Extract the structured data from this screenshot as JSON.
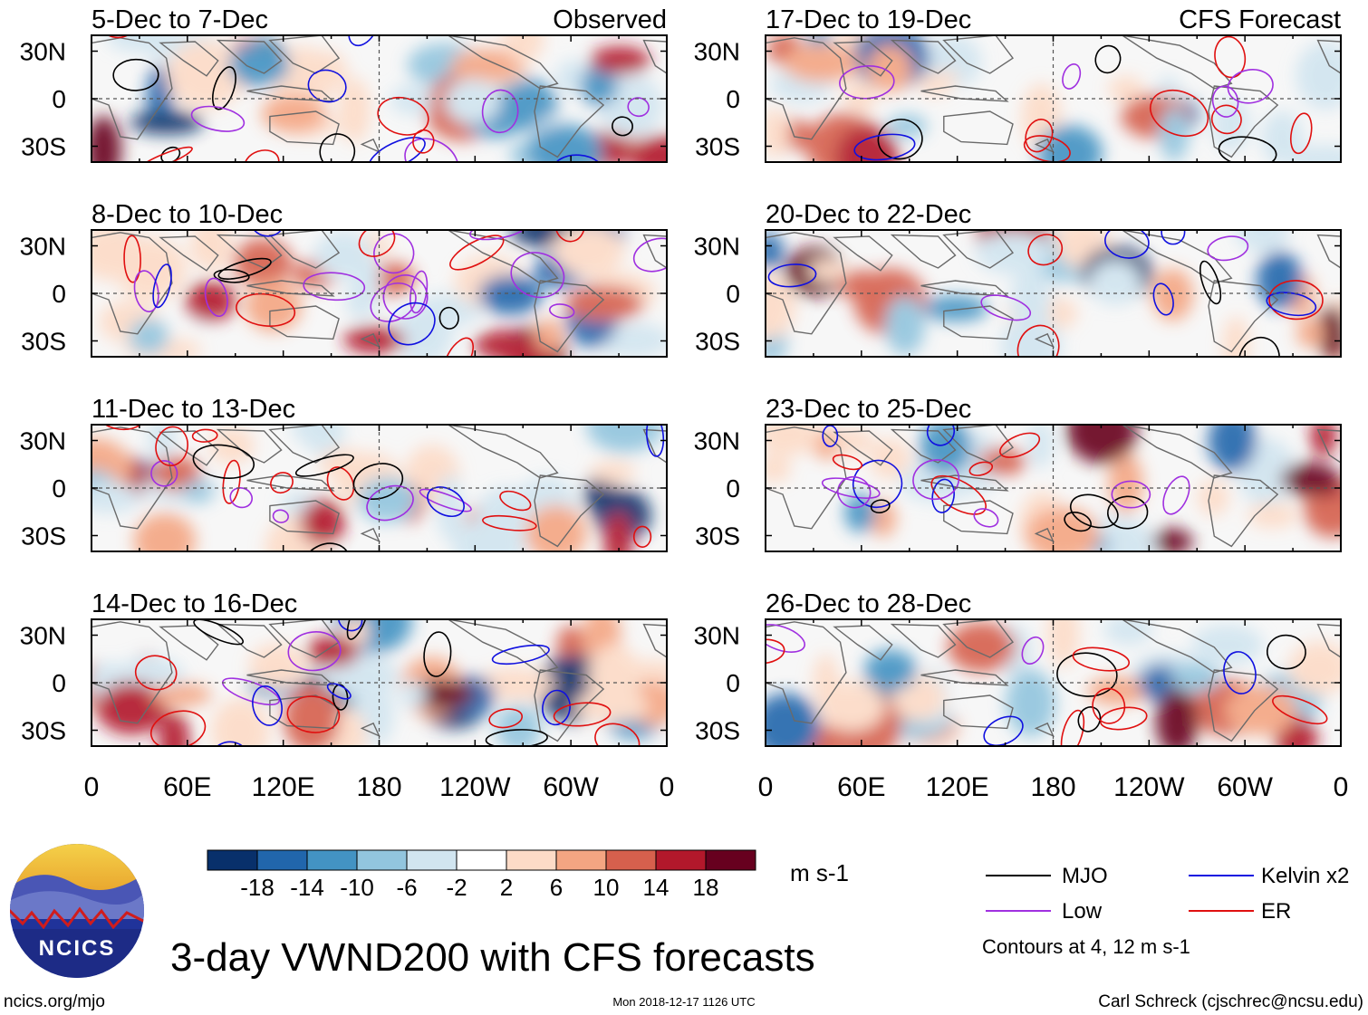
{
  "chart_data": {
    "type": "heatmap",
    "title": "3-day VWND200 with CFS forecasts",
    "variable": "VWND200",
    "units": "m s-1",
    "column_headers": {
      "left": "Observed",
      "right": "CFS Forecast"
    },
    "x_tick_labels": [
      "0",
      "60E",
      "120E",
      "180",
      "120W",
      "60W",
      "0"
    ],
    "y_tick_labels": [
      "30N",
      "0",
      "30S"
    ],
    "xlim": [
      0,
      360
    ],
    "ylim": [
      -40,
      40
    ],
    "panels": [
      {
        "column": "Observed",
        "period": "5-Dec to 7-Dec"
      },
      {
        "column": "Observed",
        "period": "8-Dec to 10-Dec"
      },
      {
        "column": "Observed",
        "period": "11-Dec to 13-Dec"
      },
      {
        "column": "Observed",
        "period": "14-Dec to 16-Dec"
      },
      {
        "column": "CFS Forecast",
        "period": "17-Dec to 19-Dec"
      },
      {
        "column": "CFS Forecast",
        "period": "20-Dec to 22-Dec"
      },
      {
        "column": "CFS Forecast",
        "period": "23-Dec to 25-Dec"
      },
      {
        "column": "CFS Forecast",
        "period": "26-Dec to 28-Dec"
      }
    ],
    "colorbar": {
      "tick_labels": [
        "-18",
        "-14",
        "-10",
        "-6",
        "-2",
        "2",
        "6",
        "10",
        "14",
        "18"
      ],
      "colors": [
        "#08306b",
        "#2166ac",
        "#4393c3",
        "#92c5de",
        "#d1e5f0",
        "#ffffff",
        "#fddbc7",
        "#f4a582",
        "#d6604d",
        "#b2182b",
        "#67001f"
      ]
    },
    "legend": [
      {
        "label": "MJO",
        "color": "#000000"
      },
      {
        "label": "Kelvin x2",
        "color": "#1010e0"
      },
      {
        "label": "Low",
        "color": "#a030e0"
      },
      {
        "label": "ER",
        "color": "#e01010"
      }
    ],
    "contour_note": "Contours at 4, 12 m s-1"
  },
  "logo": {
    "text": "NCICS"
  },
  "footer": {
    "url": "ncics.org/mjo",
    "timestamp": "Mon 2018-12-17 1126 UTC",
    "credit": "Carl Schreck (cjschrec@ncsu.edu)"
  }
}
